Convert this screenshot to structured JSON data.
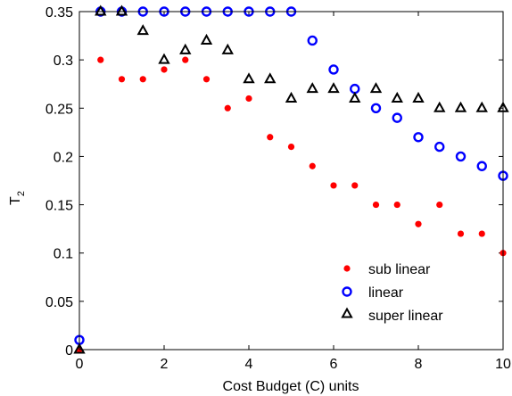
{
  "chart_data": {
    "type": "scatter",
    "title": "",
    "xlabel": "Cost Budget (C) units",
    "ylabel": {
      "main": "T",
      "subscript": "2"
    },
    "xlim": [
      0,
      10
    ],
    "ylim": [
      0,
      0.35
    ],
    "xticks": [
      0,
      2,
      4,
      6,
      8,
      10
    ],
    "yticks": [
      0,
      0.05,
      0.1,
      0.15,
      0.2,
      0.25,
      0.3,
      0.35
    ],
    "xtick_labels": [
      "0",
      "2",
      "4",
      "6",
      "8",
      "10"
    ],
    "ytick_labels": [
      "0",
      "0.05",
      "0.1",
      "0.15",
      "0.2",
      "0.25",
      "0.3",
      "0.35"
    ],
    "grid": false,
    "legend_position": "bottom-right",
    "series": [
      {
        "name": "sub linear",
        "marker": "dot",
        "color": "#ff0000",
        "x": [
          0,
          0.5,
          1,
          1.5,
          2,
          2.5,
          3,
          3.5,
          4,
          4.5,
          5,
          5.5,
          6,
          6.5,
          7,
          7.5,
          8,
          8.5,
          9,
          9.5,
          10
        ],
        "y": [
          0,
          0.3,
          0.28,
          0.28,
          0.29,
          0.3,
          0.28,
          0.25,
          0.26,
          0.22,
          0.21,
          0.19,
          0.17,
          0.17,
          0.15,
          0.15,
          0.13,
          0.15,
          0.12,
          0.12,
          0.1
        ]
      },
      {
        "name": "linear",
        "marker": "circle",
        "color": "#0000ff",
        "x": [
          0,
          0.5,
          1,
          1.5,
          2,
          2.5,
          3,
          3.5,
          4,
          4.5,
          5,
          5.5,
          6,
          6.5,
          7,
          7.5,
          8,
          8.5,
          9,
          9.5,
          10
        ],
        "y": [
          0.01,
          0.35,
          0.35,
          0.35,
          0.35,
          0.35,
          0.35,
          0.35,
          0.35,
          0.35,
          0.35,
          0.32,
          0.29,
          0.27,
          0.25,
          0.24,
          0.22,
          0.21,
          0.2,
          0.19,
          0.18
        ]
      },
      {
        "name": "super linear",
        "marker": "triangle",
        "color": "#000000",
        "x": [
          0,
          0.5,
          1,
          1.5,
          2,
          2.5,
          3,
          3.5,
          4,
          4.5,
          5,
          5.5,
          6,
          6.5,
          7,
          7.5,
          8,
          8.5,
          9,
          9.5,
          10
        ],
        "y": [
          0,
          0.35,
          0.35,
          0.33,
          0.3,
          0.31,
          0.32,
          0.31,
          0.28,
          0.28,
          0.26,
          0.27,
          0.27,
          0.26,
          0.27,
          0.26,
          0.26,
          0.25,
          0.25,
          0.25,
          0.25
        ]
      }
    ]
  }
}
